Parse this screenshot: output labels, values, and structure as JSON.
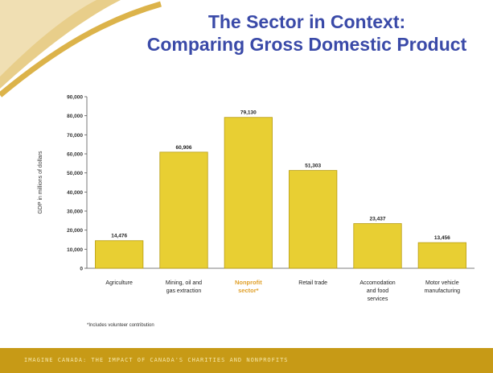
{
  "slide": {
    "title_line1": "The Sector in Context:",
    "title_line2": "Comparing Gross Domestic Product",
    "footnote": "*Includes volunteer contribution",
    "footer_text": "IMAGINE CANADA: THE IMPACT OF CANADA'S CHARITIES AND NONPROFITS"
  },
  "colors": {
    "title": "#3a4aa8",
    "bar": "#e8cf33",
    "bar_edge": "#b89d12",
    "highlight_label": "#e0a02a",
    "decor_gold": "#d6a62a",
    "footer": "#c79a16"
  },
  "chart_data": {
    "type": "bar",
    "title": "",
    "xlabel": "",
    "ylabel": "GDP in millions of dollars",
    "ylim": [
      0,
      90000
    ],
    "yticks": [
      0,
      10000,
      20000,
      30000,
      40000,
      50000,
      60000,
      70000,
      80000,
      90000
    ],
    "ytick_labels": [
      "0",
      "10,000",
      "20,000",
      "30,000",
      "40,000",
      "50,000",
      "60,000",
      "70,000",
      "80,000",
      "90,000"
    ],
    "grid": false,
    "categories": [
      [
        "Agriculture"
      ],
      [
        "Mining, oil and",
        "gas extraction"
      ],
      [
        "Nonprofit",
        "sector*"
      ],
      [
        "Retail trade"
      ],
      [
        "Accomodation",
        "and food",
        "services"
      ],
      [
        "Motor vehicle",
        "manufacturing"
      ]
    ],
    "values": [
      14476,
      60906,
      79130,
      51303,
      23437,
      13456
    ],
    "value_labels": [
      "14,476",
      "60,906",
      "79,130",
      "51,303",
      "23,437",
      "13,456"
    ],
    "highlight_index": 2
  }
}
